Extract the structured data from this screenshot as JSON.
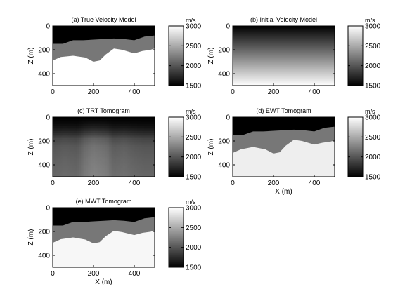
{
  "figure": {
    "colormap": "gray",
    "colorbar": {
      "unit": "m/s",
      "range": [
        1500,
        3000
      ],
      "ticks": [
        1500,
        2000,
        2500,
        3000
      ]
    },
    "axes": {
      "x_range": [
        0,
        500
      ],
      "y_range": [
        0,
        500
      ],
      "y_reversed": true,
      "x_ticks": [
        0,
        200,
        400
      ],
      "y_ticks": [
        0,
        200,
        400
      ]
    }
  },
  "chart_data": [
    {
      "type": "heatmap",
      "id": "true",
      "title": "(a) True Velocity Model",
      "ylabel": "Z (m)",
      "xlabel": "",
      "layers": [
        {
          "velocity": 1500,
          "from": "surface"
        },
        {
          "velocity": 2200,
          "from": "interface1"
        },
        {
          "velocity": 3000,
          "from": "interface2"
        }
      ],
      "interface1": {
        "x": [
          0,
          50,
          100,
          150,
          200,
          250,
          300,
          350,
          400,
          450,
          500
        ],
        "z": [
          150,
          150,
          120,
          120,
          115,
          110,
          105,
          110,
          120,
          90,
          80
        ]
      },
      "interface2": {
        "x": [
          0,
          40,
          100,
          160,
          200,
          230,
          260,
          300,
          340,
          400,
          440,
          480,
          500
        ],
        "z": [
          290,
          260,
          250,
          265,
          300,
          290,
          240,
          190,
          200,
          230,
          210,
          200,
          190
        ]
      }
    },
    {
      "type": "heatmap",
      "id": "initial",
      "title": "(b) Initial Velocity Model",
      "ylabel": "Z (m)",
      "xlabel": "",
      "gradient": {
        "z": [
          0,
          500
        ],
        "velocity": [
          1500,
          3000
        ]
      }
    },
    {
      "type": "heatmap",
      "id": "trt",
      "title": "(c) TRT Tomogram",
      "ylabel": "Z (m)",
      "xlabel": "",
      "z_profile": {
        "z": [
          0,
          60,
          120,
          180,
          250,
          350,
          500
        ],
        "velocity": [
          1500,
          1560,
          1700,
          1900,
          2000,
          2050,
          2100
        ]
      },
      "x_modulation": {
        "x": [
          0,
          60,
          120,
          160,
          200,
          260,
          300,
          350,
          400,
          450,
          500
        ],
        "delta": [
          0,
          30,
          10,
          120,
          180,
          140,
          40,
          60,
          20,
          0,
          0
        ]
      }
    },
    {
      "type": "heatmap",
      "id": "ewt",
      "title": "(d) EWT Tomogram",
      "ylabel": "Z (m)",
      "xlabel": "X (m)",
      "layers": [
        {
          "velocity": 1500,
          "from": "surface"
        },
        {
          "velocity": 2200,
          "from": "interface1"
        },
        {
          "velocity": 2900,
          "from": "interface2"
        }
      ],
      "interface1": {
        "x": [
          0,
          50,
          100,
          150,
          200,
          250,
          300,
          350,
          400,
          450,
          500
        ],
        "z": [
          150,
          150,
          120,
          120,
          115,
          110,
          105,
          110,
          120,
          90,
          80
        ]
      },
      "interface2": {
        "x": [
          0,
          40,
          100,
          160,
          200,
          230,
          260,
          300,
          340,
          400,
          440,
          480,
          500
        ],
        "z": [
          300,
          270,
          250,
          270,
          305,
          295,
          240,
          190,
          200,
          230,
          215,
          205,
          195
        ]
      }
    },
    {
      "type": "heatmap",
      "id": "mwt",
      "title": "(e) MWT Tomogram",
      "ylabel": "Z (m)",
      "xlabel": "X (m)",
      "layers": [
        {
          "velocity": 1500,
          "from": "surface"
        },
        {
          "velocity": 2200,
          "from": "interface1"
        },
        {
          "velocity": 2950,
          "from": "interface2"
        }
      ],
      "interface1": {
        "x": [
          0,
          50,
          100,
          150,
          200,
          250,
          300,
          350,
          400,
          450,
          500
        ],
        "z": [
          150,
          150,
          120,
          120,
          115,
          110,
          105,
          110,
          120,
          90,
          80
        ]
      },
      "interface2": {
        "x": [
          0,
          40,
          100,
          160,
          200,
          230,
          260,
          300,
          340,
          400,
          440,
          480,
          500
        ],
        "z": [
          295,
          265,
          250,
          268,
          300,
          290,
          240,
          195,
          205,
          230,
          212,
          202,
          192
        ]
      }
    }
  ]
}
